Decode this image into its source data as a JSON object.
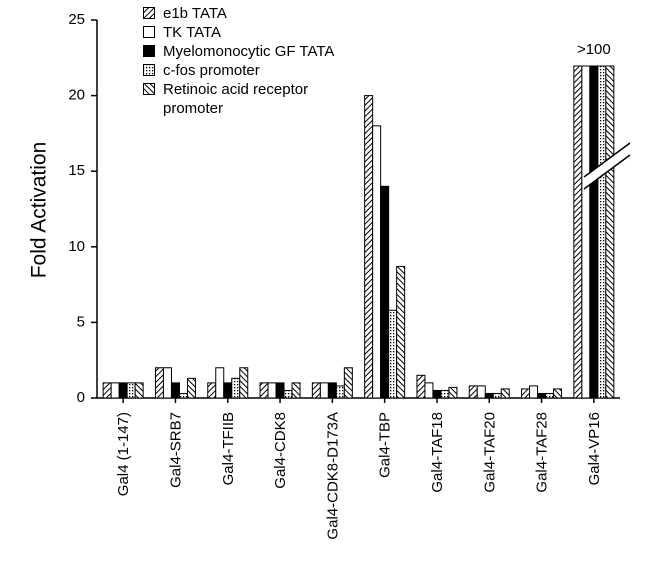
{
  "chart_data": {
    "type": "bar",
    "y_label": "Fold Activation",
    "categories": [
      "Gal4 (1-147)",
      "Gal4-SRB7",
      "Gal4-TFIIB",
      "Gal4-CDK8",
      "Gal4-CDK8-D173A",
      "Gal4-TBP",
      "Gal4-TAF18",
      "Gal4-TAF20",
      "Gal4-TAF28",
      "Gal4-VP16"
    ],
    "series": [
      {
        "name": "e1b TATA",
        "color": "#000000",
        "pattern": "hatch-right",
        "values": [
          1,
          2,
          1,
          1,
          1,
          20,
          1.5,
          0.8,
          0.6,
          100
        ]
      },
      {
        "name": "TK TATA",
        "color": "#ffffff",
        "pattern": "solid",
        "values": [
          1,
          2,
          2,
          1,
          1,
          18,
          1,
          0.8,
          0.8,
          100
        ]
      },
      {
        "name": "Myelomonocytic GF TATA",
        "color": "#000000",
        "pattern": "solid",
        "values": [
          1,
          1,
          1,
          1,
          1,
          14,
          0.5,
          0.3,
          0.3,
          100
        ]
      },
      {
        "name": "c-fos  promoter",
        "color": "#000000",
        "pattern": "dots",
        "values": [
          1,
          0.3,
          1.3,
          0.5,
          0.8,
          5.8,
          0.5,
          0.3,
          0.3,
          100
        ]
      },
      {
        "name": "Retinoic acid receptor promoter",
        "color": "#000000",
        "pattern": "hatch-left",
        "values": [
          1,
          1.3,
          2,
          1,
          2,
          8.7,
          0.7,
          0.6,
          0.6,
          100
        ]
      }
    ],
    "annotations": [
      {
        "text": ">100",
        "category": 9
      }
    ],
    "ylim": [
      0,
      25
    ],
    "yticks": [
      0,
      5,
      10,
      15,
      20,
      25
    ],
    "axis_break": true
  }
}
